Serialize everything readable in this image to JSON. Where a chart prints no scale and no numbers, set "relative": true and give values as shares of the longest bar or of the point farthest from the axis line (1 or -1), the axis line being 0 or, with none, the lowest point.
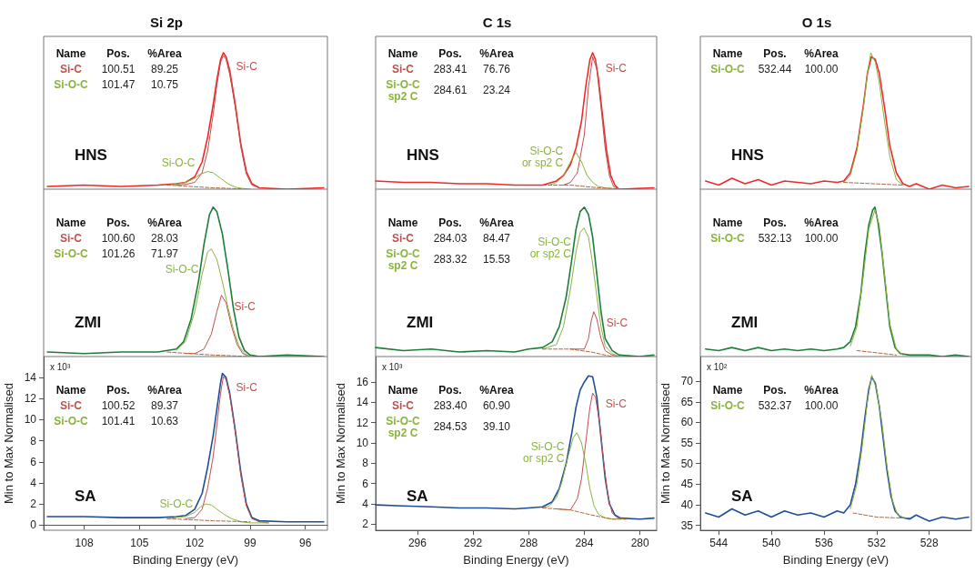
{
  "chart_data": [
    {
      "type": "line",
      "title": "Si 2p",
      "relative": true,
      "xlim": [
        110.2,
        94.8
      ],
      "tick_labels": false,
      "annotations": [
        "HNS",
        "Name",
        "Pos.",
        "%Area",
        "Si-C",
        "100.51",
        "89.25",
        "Si-O-C",
        "101.47",
        "10.75"
      ],
      "series": [
        {
          "color": "#ee2b2b",
          "x": [
            110,
            108,
            106,
            104,
            103,
            102.5,
            102,
            101.6,
            101.3,
            101,
            100.8,
            100.6,
            100.45,
            100.3,
            100.1,
            99.8,
            99.5,
            99.2,
            98.9,
            98.5,
            97,
            95
          ],
          "values": [
            0.02,
            0.03,
            0.02,
            0.03,
            0.04,
            0.05,
            0.09,
            0.2,
            0.38,
            0.62,
            0.8,
            0.95,
            1,
            0.97,
            0.87,
            0.62,
            0.33,
            0.13,
            0.04,
            0.01,
            0,
            0.01
          ]
        },
        {
          "name": "Si-C",
          "color": "#c0504d",
          "x": [
            103,
            102.5,
            102,
            101.6,
            101.3,
            101,
            100.8,
            100.6,
            100.45,
            100.3,
            100.1,
            99.8,
            99.5,
            99.2,
            98.9,
            98.5
          ],
          "values": [
            0.03,
            0.035,
            0.05,
            0.12,
            0.28,
            0.55,
            0.76,
            0.93,
            0.98,
            0.95,
            0.84,
            0.6,
            0.31,
            0.11,
            0.03,
            0.01
          ]
        },
        {
          "name": "Si-O-C",
          "color": "#8ab33e",
          "x": [
            103.5,
            103,
            102.5,
            102,
            101.7,
            101.3,
            101,
            100.6,
            100.2,
            99.8,
            99.4,
            99
          ],
          "values": [
            0.03,
            0.035,
            0.05,
            0.08,
            0.11,
            0.13,
            0.12,
            0.08,
            0.04,
            0.015,
            0.005,
            0
          ]
        },
        {
          "color": "#b5653a",
          "line_style": "dashed",
          "x": [
            103.5,
            101,
            99
          ],
          "values": [
            0.03,
            0.01,
            0
          ]
        }
      ]
    },
    {
      "type": "line",
      "title": "C 1s",
      "relative": true,
      "xlim": [
        299,
        278.8
      ],
      "tick_labels": false,
      "annotations": [
        "HNS",
        "Name",
        "Pos.",
        "%Area",
        "Si-C",
        "283.41",
        "76.76",
        "Si-O-C\nsp2 C",
        "284.61",
        "23.24"
      ],
      "series": [
        {
          "color": "#ee2b2b",
          "x": [
            299,
            297,
            295,
            293,
            291,
            289,
            287,
            286,
            285.5,
            285,
            284.6,
            284.2,
            283.9,
            283.6,
            283.4,
            283.2,
            283,
            282.7,
            282.4,
            282.1,
            281.8,
            281.5,
            279
          ],
          "values": [
            0.06,
            0.05,
            0.05,
            0.04,
            0.04,
            0.03,
            0.03,
            0.06,
            0.1,
            0.18,
            0.3,
            0.5,
            0.75,
            0.95,
            1,
            0.95,
            0.82,
            0.55,
            0.28,
            0.1,
            0.03,
            0,
            0.01
          ]
        },
        {
          "name": "Si-C",
          "color": "#c0504d",
          "x": [
            285.5,
            285,
            284.5,
            284,
            283.7,
            283.4,
            283.1,
            282.8,
            282.5,
            282.2,
            281.9,
            281.5
          ],
          "values": [
            0.03,
            0.05,
            0.12,
            0.4,
            0.75,
            0.97,
            0.88,
            0.6,
            0.3,
            0.1,
            0.02,
            0
          ]
        },
        {
          "name": "Si-O-C\nor sp2 C",
          "color": "#8ab33e",
          "x": [
            286.5,
            286,
            285.5,
            285,
            284.6,
            284.2,
            283.8,
            283.4,
            283,
            282.5,
            281.5
          ],
          "values": [
            0.03,
            0.05,
            0.1,
            0.2,
            0.27,
            0.2,
            0.1,
            0.05,
            0.02,
            0.01,
            0
          ]
        },
        {
          "color": "#b5653a",
          "line_style": "dashed",
          "x": [
            287,
            285,
            283,
            281
          ],
          "values": [
            0.03,
            0.03,
            0.01,
            0
          ]
        }
      ]
    },
    {
      "type": "line",
      "title": "O 1s",
      "relative": true,
      "xlim": [
        545.4,
        524.8
      ],
      "tick_labels": false,
      "annotations": [
        "HNS",
        "Name",
        "Pos.",
        "%Area",
        "Si-O-C",
        "532.44",
        "100.00"
      ],
      "series": [
        {
          "color": "#ee2b2b",
          "x": [
            545,
            544,
            543,
            542,
            541,
            540,
            539,
            538,
            537,
            536,
            535,
            534.5,
            534,
            533.5,
            533,
            532.7,
            532.4,
            532.1,
            531.8,
            531.4,
            531,
            530.5,
            530,
            529.5,
            529,
            528,
            527,
            526,
            525
          ],
          "values": [
            0.06,
            0.03,
            0.08,
            0.04,
            0.07,
            0.03,
            0.06,
            0.05,
            0.04,
            0.06,
            0.05,
            0.06,
            0.12,
            0.3,
            0.62,
            0.85,
            0.97,
            0.95,
            0.85,
            0.6,
            0.32,
            0.12,
            0.04,
            0.02,
            0.04,
            0,
            0.03,
            0.01,
            0.02
          ]
        },
        {
          "color": "#8ab33e",
          "x": [
            534.5,
            534,
            533.5,
            533,
            532.7,
            532.44,
            532.1,
            531.8,
            531.4,
            531,
            530.5,
            530
          ],
          "values": [
            0.05,
            0.1,
            0.28,
            0.6,
            0.85,
            1,
            0.93,
            0.78,
            0.5,
            0.24,
            0.07,
            0.03
          ]
        },
        {
          "color": "#b5653a",
          "line_style": "dashed",
          "x": [
            534.5,
            530
          ],
          "values": [
            0.05,
            0.03
          ]
        }
      ]
    },
    {
      "type": "line",
      "relative": true,
      "xlim": [
        110.2,
        94.8
      ],
      "tick_labels": false,
      "annotations": [
        "ZMI",
        "Name",
        "Pos.",
        "%Area",
        "Si-C",
        "100.60",
        "28.03",
        "Si-O-C",
        "101.26",
        "71.97"
      ],
      "series": [
        {
          "color": "#1e7d3c",
          "x": [
            110,
            108,
            106,
            104,
            103,
            102.6,
            102.2,
            101.8,
            101.5,
            101.2,
            101,
            100.8,
            100.5,
            100.2,
            99.9,
            99.6,
            99.3,
            99,
            98.5,
            97,
            95
          ],
          "values": [
            0.03,
            0.02,
            0.03,
            0.03,
            0.05,
            0.1,
            0.25,
            0.5,
            0.75,
            0.95,
            1,
            0.97,
            0.82,
            0.58,
            0.32,
            0.13,
            0.04,
            0.01,
            0,
            0.01,
            0
          ]
        },
        {
          "name": "Si-C",
          "color": "#c0504d",
          "x": [
            102.5,
            102,
            101.5,
            101.1,
            100.8,
            100.55,
            100.3,
            100,
            99.7,
            99.4,
            99
          ],
          "values": [
            0.02,
            0.02,
            0.05,
            0.15,
            0.3,
            0.41,
            0.36,
            0.2,
            0.08,
            0.02,
            0
          ]
        },
        {
          "name": "Si-O-C",
          "color": "#8ab33e",
          "x": [
            103,
            102.5,
            102,
            101.6,
            101.3,
            101.1,
            100.8,
            100.5,
            100.2,
            99.9,
            99.6,
            99.3,
            99
          ],
          "values": [
            0.04,
            0.1,
            0.3,
            0.55,
            0.7,
            0.72,
            0.65,
            0.5,
            0.33,
            0.18,
            0.07,
            0.02,
            0
          ]
        },
        {
          "color": "#b5653a",
          "line_style": "dashed",
          "x": [
            103.5,
            101,
            99
          ],
          "values": [
            0.03,
            0.01,
            0
          ]
        }
      ]
    },
    {
      "type": "line",
      "relative": true,
      "xlim": [
        299,
        278.8
      ],
      "tick_labels": false,
      "annotations": [
        "ZMI",
        "Name",
        "Pos.",
        "%Area",
        "Si-C",
        "284.03",
        "84.47",
        "Si-O-C\nsp2 C",
        "283.32",
        "15.53"
      ],
      "series": [
        {
          "color": "#1e7d3c",
          "x": [
            299,
            297,
            295,
            293,
            291,
            289,
            288,
            287,
            286.3,
            285.8,
            285.3,
            284.9,
            284.6,
            284.3,
            284,
            283.7,
            283.4,
            283.1,
            282.8,
            282.5,
            282,
            281.5,
            280,
            279
          ],
          "values": [
            0.06,
            0.04,
            0.05,
            0.03,
            0.04,
            0.03,
            0.05,
            0.06,
            0.1,
            0.2,
            0.4,
            0.65,
            0.85,
            0.97,
            1,
            0.95,
            0.8,
            0.55,
            0.3,
            0.12,
            0.04,
            0.01,
            0,
            0.01
          ]
        },
        {
          "name": "Si-C",
          "color": "#c0504d",
          "x": [
            285,
            284,
            283.7,
            283.5,
            283.32,
            283.1,
            282.8,
            282.5,
            282,
            281.5
          ],
          "values": [
            0.05,
            0.05,
            0.12,
            0.24,
            0.3,
            0.25,
            0.12,
            0.04,
            0.01,
            0
          ]
        },
        {
          "name": "Si-O-C\nor sp2 C",
          "color": "#8ab33e",
          "x": [
            287,
            286,
            285.5,
            285,
            284.6,
            284.3,
            284.03,
            283.7,
            283.4,
            283.1,
            282.8,
            282.5,
            282,
            281.5
          ],
          "values": [
            0.05,
            0.08,
            0.2,
            0.45,
            0.7,
            0.83,
            0.86,
            0.8,
            0.62,
            0.4,
            0.2,
            0.07,
            0.02,
            0
          ]
        },
        {
          "color": "#b5653a",
          "line_style": "dashed",
          "x": [
            287,
            285,
            283.5,
            282
          ],
          "values": [
            0.05,
            0.05,
            0.03,
            0
          ]
        }
      ]
    },
    {
      "type": "line",
      "relative": true,
      "xlim": [
        545.4,
        524.8
      ],
      "tick_labels": false,
      "annotations": [
        "ZMI",
        "Name",
        "Pos.",
        "%Area",
        "Si-O-C",
        "532.13",
        "100.00"
      ],
      "series": [
        {
          "color": "#1e7d3c",
          "x": [
            545,
            544,
            543,
            542,
            541,
            540,
            539,
            538,
            537,
            536,
            535,
            534.5,
            534,
            533.6,
            533.2,
            532.9,
            532.6,
            532.3,
            532.13,
            531.9,
            531.6,
            531.3,
            531,
            530.6,
            530.2,
            529.5,
            528,
            527,
            526,
            525
          ],
          "values": [
            0.05,
            0.04,
            0.06,
            0.04,
            0.06,
            0.04,
            0.05,
            0.04,
            0.05,
            0.04,
            0.05,
            0.06,
            0.1,
            0.2,
            0.42,
            0.68,
            0.88,
            0.98,
            1,
            0.9,
            0.7,
            0.45,
            0.2,
            0.06,
            0.02,
            0.01,
            0.01,
            0,
            0.01,
            0
          ]
        },
        {
          "color": "#8ab33e",
          "x": [
            534,
            533.5,
            533,
            532.6,
            532.13,
            531.8,
            531.4,
            531,
            530.5,
            530
          ],
          "values": [
            0.07,
            0.2,
            0.55,
            0.85,
            0.98,
            0.88,
            0.55,
            0.22,
            0.05,
            0.01
          ]
        },
        {
          "color": "#b5653a",
          "line_style": "dashed",
          "x": [
            533.5,
            530.5
          ],
          "values": [
            0.04,
            0.01
          ]
        }
      ]
    },
    {
      "type": "line",
      "xlabel": "Binding Energy (eV)",
      "ylabel": "Min to Max Normalised",
      "xlim": [
        110.2,
        94.8
      ],
      "xticks": [
        108,
        105,
        102,
        99,
        96
      ],
      "ylim": [
        -0.5,
        16
      ],
      "yticks": [
        0,
        2,
        4,
        6,
        8,
        10,
        12,
        14
      ],
      "annotations": [
        "SA",
        "x 10³",
        "Name",
        "Pos.",
        "%Area",
        "Si-C",
        "100.52",
        "89.37",
        "Si-O-C",
        "101.41",
        "10.63"
      ],
      "series": [
        {
          "color": "#1f4e99",
          "x": [
            110,
            108,
            106,
            104,
            103,
            102.5,
            102,
            101.6,
            101.3,
            101,
            100.8,
            100.6,
            100.5,
            100.3,
            100.1,
            99.8,
            99.5,
            99.2,
            98.9,
            98.5,
            97,
            95
          ],
          "values": [
            0.8,
            0.8,
            0.7,
            0.7,
            0.8,
            0.9,
            1.5,
            3,
            5.5,
            8.5,
            11,
            13.5,
            14.4,
            14,
            12.5,
            9,
            5,
            2,
            0.7,
            0.4,
            0.3,
            0.3
          ]
        },
        {
          "name": "Si-C",
          "color": "#c0504d",
          "x": [
            102.5,
            102,
            101.6,
            101.3,
            101,
            100.8,
            100.6,
            100.45,
            100.3,
            100.1,
            99.8,
            99.5,
            99.2,
            98.9,
            98.5,
            98
          ],
          "values": [
            0.6,
            0.7,
            1.5,
            3.5,
            6.5,
            9.5,
            12.5,
            14.1,
            13.8,
            12.3,
            8.8,
            4.7,
            1.8,
            0.6,
            0.3,
            0.2
          ]
        },
        {
          "name": "Si-O-C",
          "color": "#8ab33e",
          "x": [
            103.5,
            103,
            102.5,
            102,
            101.7,
            101.4,
            101.1,
            100.8,
            100.4,
            100,
            99.5,
            99,
            98
          ],
          "values": [
            0.6,
            0.7,
            0.8,
            1.2,
            1.7,
            2,
            1.9,
            1.5,
            1,
            0.6,
            0.3,
            0.2,
            0.2
          ]
        },
        {
          "color": "#b5653a",
          "line_style": "dashed",
          "x": [
            103.5,
            101,
            99
          ],
          "values": [
            0.6,
            0.4,
            0.3
          ]
        }
      ]
    },
    {
      "type": "line",
      "xlabel": "Binding Energy (eV)",
      "ylabel": "Min to Max Normalised",
      "xlim": [
        299,
        278.8
      ],
      "xticks": [
        296,
        292,
        288,
        284,
        280
      ],
      "ylim": [
        1.4,
        18.5
      ],
      "yticks": [
        2,
        4,
        6,
        8,
        10,
        12,
        14,
        16
      ],
      "annotations": [
        "SA",
        "x 10³",
        "Name",
        "Pos.",
        "%Area",
        "Si-C",
        "283.40",
        "60.90",
        "Si-O-C\nsp2 C",
        "284.53",
        "39.10"
      ],
      "series": [
        {
          "color": "#1f4e99",
          "x": [
            299,
            297,
            295,
            293,
            291,
            289,
            288,
            287,
            286.3,
            285.8,
            285.3,
            284.9,
            284.6,
            284.3,
            284,
            283.7,
            283.4,
            283.1,
            282.8,
            282.5,
            282.2,
            281.8,
            281.4,
            280,
            279
          ],
          "values": [
            3.9,
            3.8,
            3.7,
            3.6,
            3.6,
            3.5,
            3.6,
            3.7,
            4.2,
            5.5,
            8,
            11,
            13.5,
            15.2,
            16,
            16.6,
            16.5,
            14.5,
            10.5,
            6.5,
            4,
            2.9,
            2.6,
            2.5,
            2.6
          ]
        },
        {
          "name": "Si-C",
          "color": "#c0504d",
          "x": [
            286,
            285,
            284.5,
            284.2,
            283.9,
            283.6,
            283.4,
            283.2,
            282.9,
            282.6,
            282.3,
            282,
            281.6,
            281
          ],
          "values": [
            3.5,
            3.4,
            4.5,
            6.5,
            10,
            13.5,
            14.9,
            14.5,
            12,
            8,
            4.8,
            3.1,
            2.6,
            2.5
          ]
        },
        {
          "name": "Si-O-C\nor sp2 C",
          "color": "#8ab33e",
          "x": [
            287,
            286.5,
            286,
            285.6,
            285.2,
            284.8,
            284.53,
            284.2,
            283.9,
            283.6,
            283.3,
            283,
            282.5,
            282,
            281
          ],
          "values": [
            3.6,
            3.8,
            4.6,
            6.2,
            8.5,
            10.5,
            11,
            10,
            8,
            5.5,
            3.8,
            3,
            2.6,
            2.5,
            2.5
          ]
        },
        {
          "color": "#b5653a",
          "line_style": "dashed",
          "x": [
            287,
            285,
            283.5,
            282,
            281
          ],
          "values": [
            3.6,
            3.4,
            2.9,
            2.5,
            2.5
          ]
        }
      ]
    },
    {
      "type": "line",
      "xlabel": "Binding Energy (eV)",
      "ylabel": "Min to Max Normalised",
      "xlim": [
        545.4,
        524.8
      ],
      "xticks": [
        544,
        540,
        536,
        532,
        528
      ],
      "ylim": [
        33.8,
        76
      ],
      "yticks": [
        35,
        40,
        45,
        50,
        55,
        60,
        65,
        70
      ],
      "annotations": [
        "SA",
        "x 10²",
        "Name",
        "Pos.",
        "%Area",
        "Si-O-C",
        "532.37",
        "100.00"
      ],
      "series": [
        {
          "color": "#1f4e99",
          "x": [
            545,
            544,
            543,
            542,
            541,
            540,
            539,
            538,
            537,
            536,
            535,
            534.5,
            534,
            533.6,
            533.2,
            532.9,
            532.6,
            532.37,
            532.1,
            531.8,
            531.5,
            531.2,
            530.9,
            530.6,
            530.2,
            529.5,
            529,
            528,
            527,
            526,
            525
          ],
          "values": [
            38,
            37,
            39,
            37.5,
            38.5,
            37,
            38.5,
            37.5,
            38,
            37,
            38.5,
            38,
            40,
            45,
            53,
            61,
            68,
            71,
            69.5,
            64,
            56,
            48,
            42,
            38.5,
            37,
            36.5,
            37.5,
            36,
            37,
            36.5,
            37
          ]
        },
        {
          "color": "#8ab33e",
          "x": [
            534,
            533.5,
            533.1,
            532.7,
            532.37,
            532,
            531.6,
            531.2,
            530.8,
            530.4,
            530
          ],
          "values": [
            39,
            45,
            54,
            65,
            71.5,
            68,
            60,
            49,
            41,
            37.5,
            37
          ]
        },
        {
          "color": "#b5653a",
          "line_style": "dashed",
          "x": [
            533.8,
            532,
            530.5,
            529.5
          ],
          "values": [
            38,
            37,
            36.8,
            36.8
          ]
        }
      ]
    }
  ]
}
